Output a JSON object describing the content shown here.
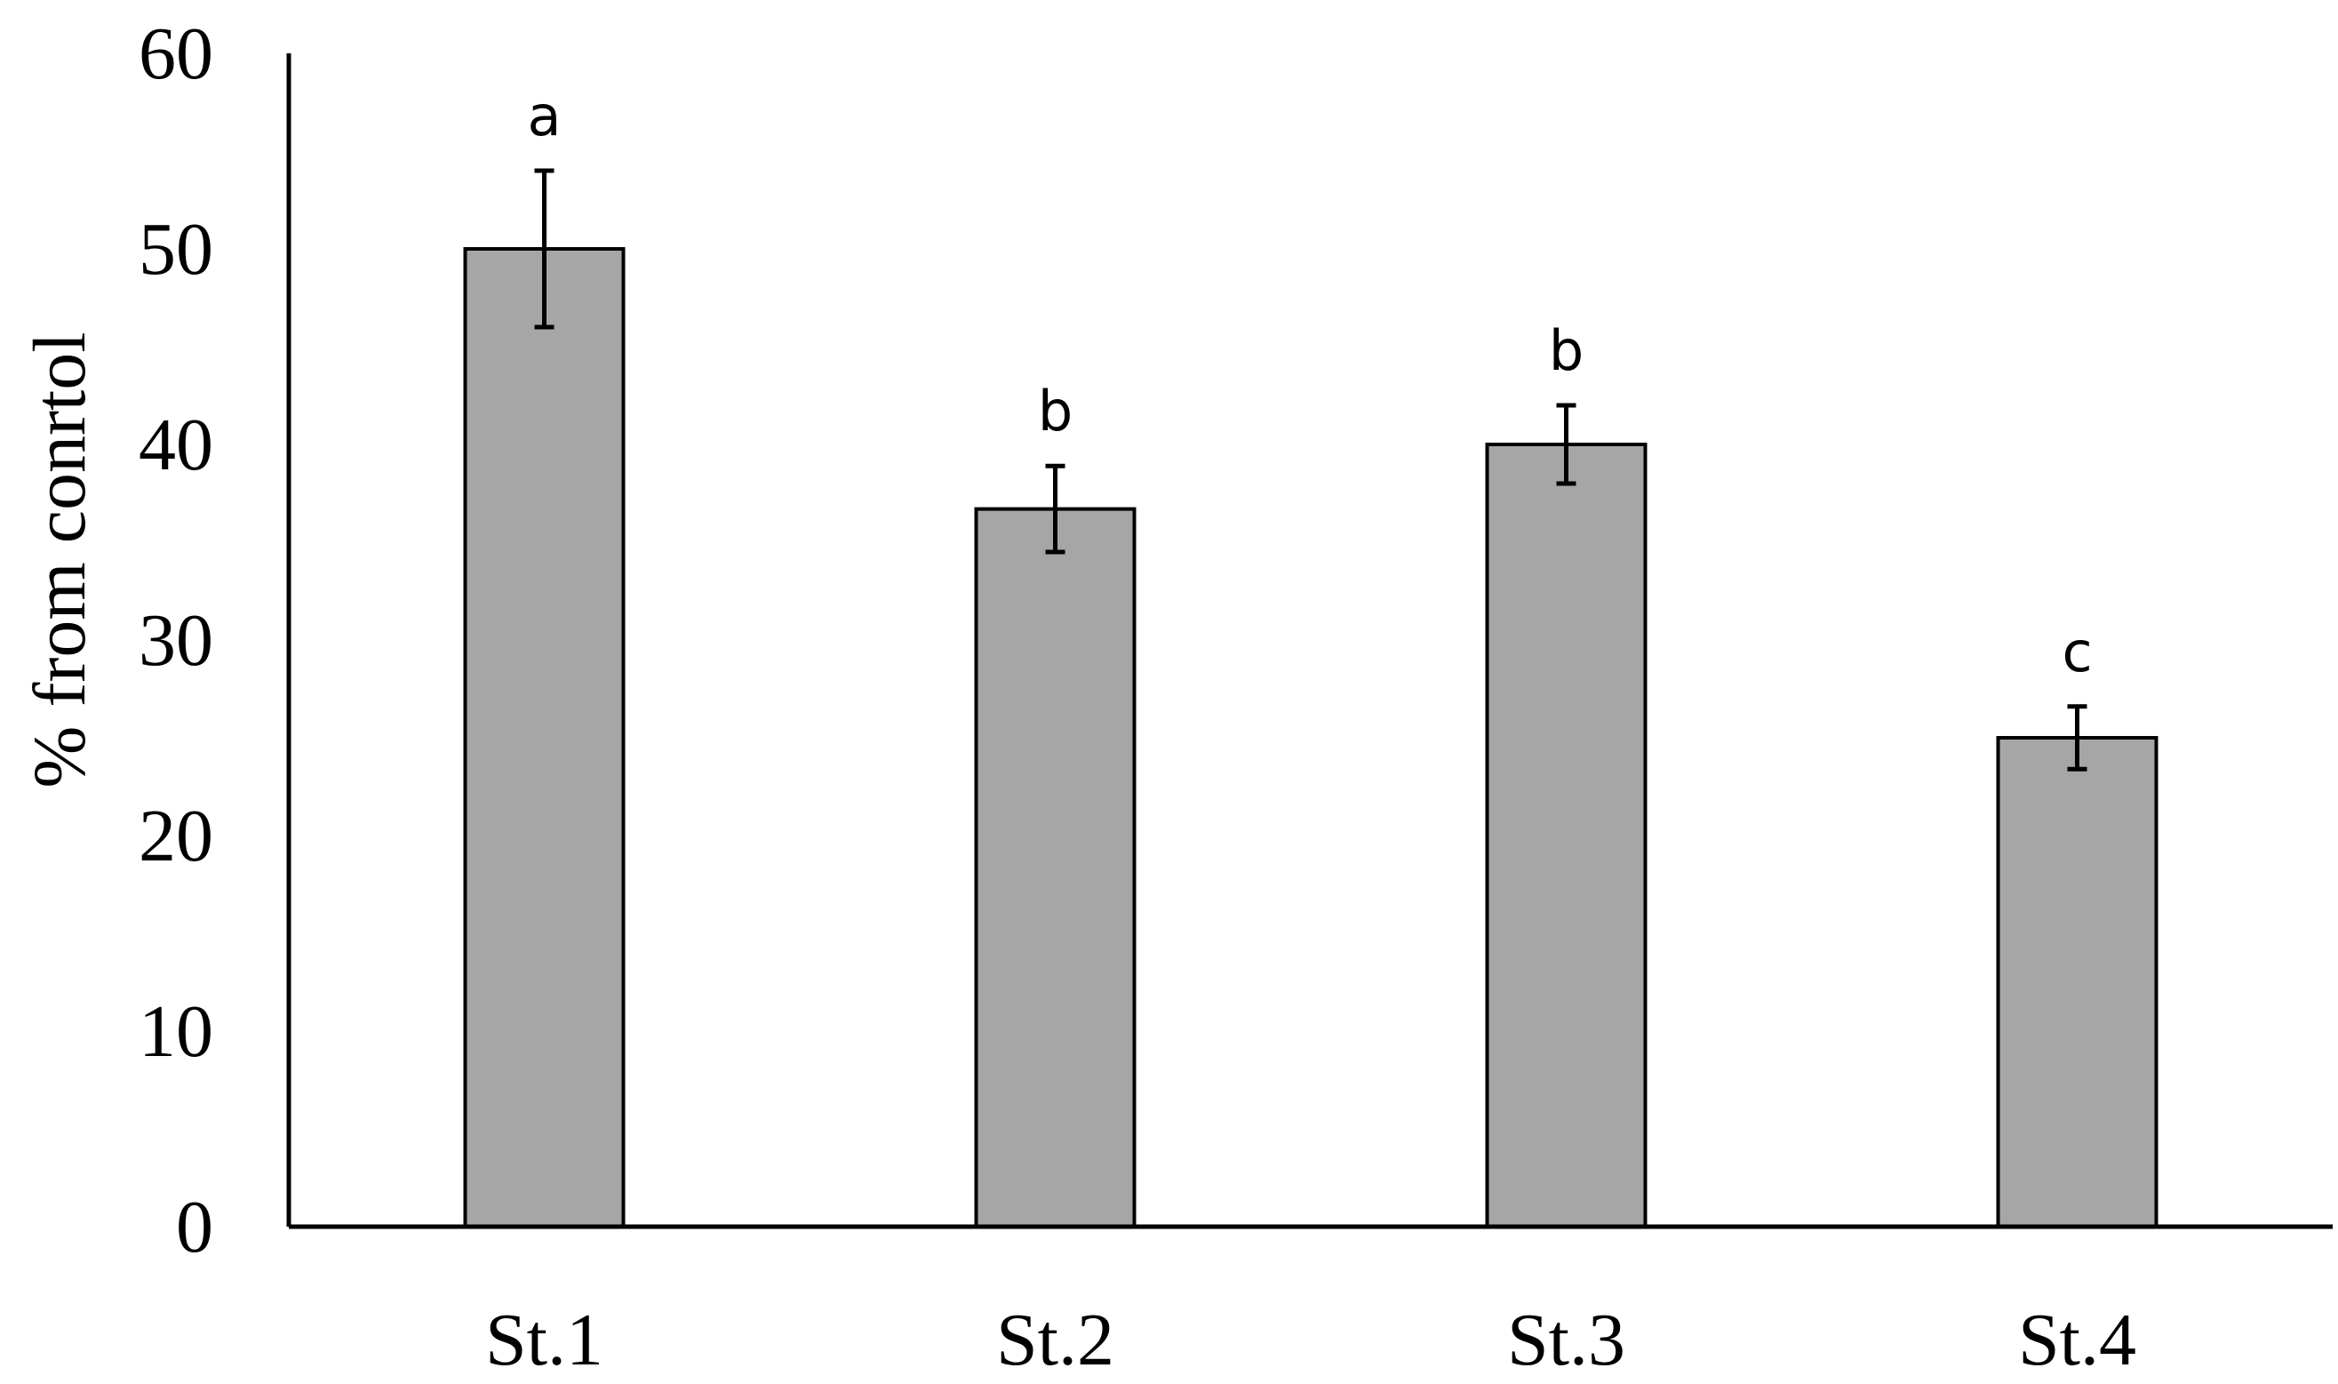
{
  "chart_data": {
    "type": "bar",
    "categories": [
      "St.1",
      "St.2",
      "St.3",
      "St.4"
    ],
    "values": [
      50,
      36.7,
      40,
      25
    ],
    "errors": [
      4,
      2.2,
      2,
      1.6
    ],
    "significance": [
      "a",
      "b",
      "b",
      "c"
    ],
    "ylabel": "% from conrtol",
    "xlabel": "",
    "title": "",
    "ylim": [
      0,
      60
    ],
    "yticks": [
      "0",
      "10",
      "20",
      "30",
      "40",
      "50",
      "60"
    ],
    "grid": false,
    "legend": "none",
    "bar_color": "#a6a6a6",
    "bar_edge_color": "#000000"
  }
}
